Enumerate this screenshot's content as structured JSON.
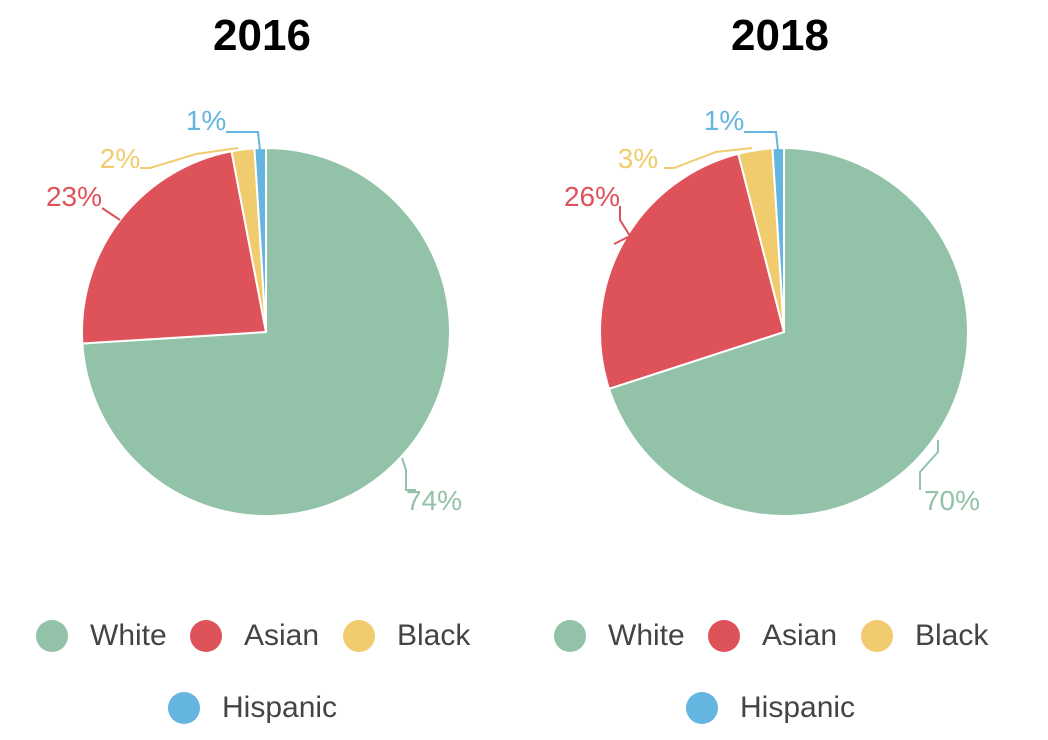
{
  "colors": {
    "White": "#92c2a8",
    "Asian": "#de525a",
    "Black": "#f0cc6e",
    "Hispanic": "#64b5e0"
  },
  "chart_data": [
    {
      "type": "pie",
      "title": "2016",
      "slices": [
        {
          "label": "White",
          "value": 74,
          "display": "74%"
        },
        {
          "label": "Asian",
          "value": 23,
          "display": "23%"
        },
        {
          "label": "Black",
          "value": 2,
          "display": "2%"
        },
        {
          "label": "Hispanic",
          "value": 1,
          "display": "1%"
        }
      ],
      "legend": [
        "White",
        "Asian",
        "Black",
        "Hispanic"
      ],
      "legend_position": "bottom"
    },
    {
      "type": "pie",
      "title": "2018",
      "slices": [
        {
          "label": "White",
          "value": 70,
          "display": "70%"
        },
        {
          "label": "Asian",
          "value": 26,
          "display": "26%"
        },
        {
          "label": "Black",
          "value": 3,
          "display": "3%"
        },
        {
          "label": "Hispanic",
          "value": 1,
          "display": "1%"
        }
      ],
      "legend": [
        "White",
        "Asian",
        "Black",
        "Hispanic"
      ],
      "legend_position": "bottom"
    }
  ]
}
